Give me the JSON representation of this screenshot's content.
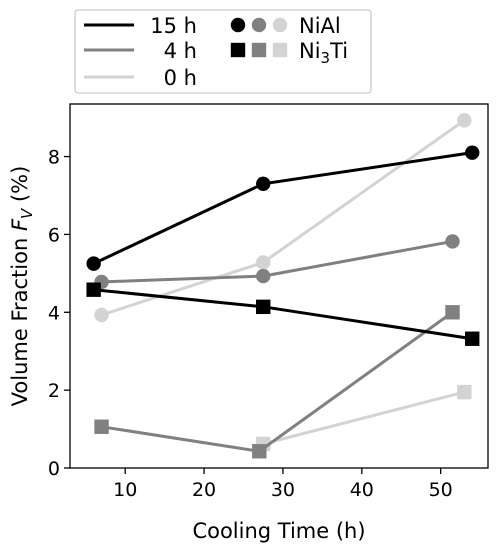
{
  "chart_data": {
    "type": "line",
    "xlabel": "Cooling Time (h)",
    "ylabel": "Volume Fraction F_V (%)",
    "ylabel_parts": {
      "text": "Volume Fraction ",
      "var": "F",
      "sub": "V",
      "unit": " (%)"
    },
    "xlim": [
      3,
      56
    ],
    "ylim": [
      0,
      9.35
    ],
    "xticks": [
      10,
      20,
      30,
      40,
      50
    ],
    "yticks": [
      0,
      2,
      4,
      6,
      8
    ],
    "grid": false,
    "legend": {
      "placement": "top",
      "times": [
        "15 h",
        "4 h",
        "0 h"
      ],
      "phases": [
        {
          "key": "NiAl",
          "label": "NiAl",
          "marker": "circle"
        },
        {
          "key": "Ni3Ti",
          "label": "Ni",
          "sub": "3",
          "label_suffix": "Ti",
          "marker": "square"
        }
      ]
    },
    "colors": {
      "15 h": "#000000",
      "4 h": "#808080",
      "0 h": "#d3d3d3"
    },
    "series": [
      {
        "name": "0 h",
        "phase": "NiAl",
        "marker": "circle",
        "x": [
          7.0,
          27.5,
          53.0
        ],
        "y": [
          3.93,
          5.28,
          8.93
        ]
      },
      {
        "name": "0 h",
        "phase": "Ni3Ti",
        "marker": "square",
        "x": [
          27.5,
          53.0
        ],
        "y": [
          0.62,
          1.95
        ]
      },
      {
        "name": "4 h",
        "phase": "NiAl",
        "marker": "circle",
        "x": [
          7.0,
          27.5,
          51.5
        ],
        "y": [
          4.78,
          4.93,
          5.82
        ]
      },
      {
        "name": "4 h",
        "phase": "Ni3Ti",
        "marker": "square",
        "x": [
          7.0,
          27.0,
          51.5
        ],
        "y": [
          1.06,
          0.43,
          4.0
        ]
      },
      {
        "name": "15 h",
        "phase": "NiAl",
        "marker": "circle",
        "x": [
          6.0,
          27.5,
          54.0
        ],
        "y": [
          5.25,
          7.3,
          8.1
        ]
      },
      {
        "name": "15 h",
        "phase": "Ni3Ti",
        "marker": "square",
        "x": [
          6.0,
          27.5,
          54.0
        ],
        "y": [
          4.58,
          4.14,
          3.32
        ]
      }
    ]
  }
}
